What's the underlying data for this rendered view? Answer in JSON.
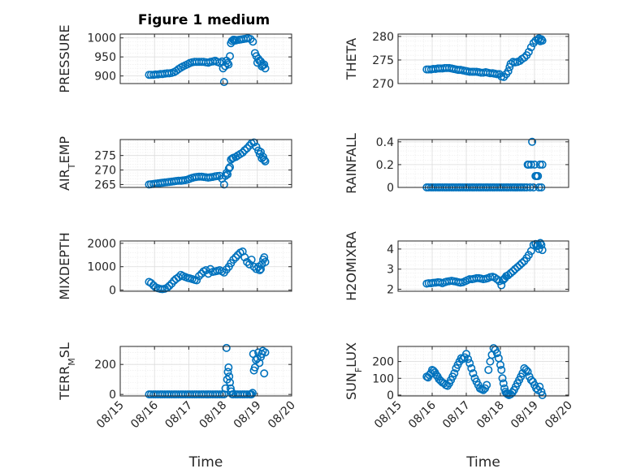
{
  "figure_title": "Figure 1 medium",
  "marker_color": "#0072bd",
  "chart_data": [
    {
      "type": "scatter",
      "ylabel": "PRESSURE",
      "xlabel": "",
      "xlim": [
        0,
        5
      ],
      "ylim": [
        880,
        1010
      ],
      "xticks": [
        0,
        1,
        2,
        3,
        4,
        5
      ],
      "xtick_labels": [
        "08/15",
        "08/16",
        "08/17",
        "08/18",
        "08/19",
        "08/20"
      ],
      "yticks": [
        900,
        950,
        1000
      ],
      "ytick_labels": [
        "900",
        "950",
        "1000"
      ],
      "grid": true,
      "minor_grid": true,
      "x": [
        0.84,
        0.9,
        0.97,
        1.03,
        1.1,
        1.17,
        1.23,
        1.3,
        1.37,
        1.43,
        1.5,
        1.57,
        1.63,
        1.7,
        1.77,
        1.83,
        1.9,
        1.97,
        2.03,
        2.1,
        2.17,
        2.23,
        2.3,
        2.37,
        2.43,
        2.5,
        2.57,
        2.63,
        2.7,
        2.77,
        2.83,
        2.9,
        2.97,
        3.0,
        3.03,
        3.06,
        3.1,
        3.13,
        3.16,
        3.2,
        3.23,
        3.26,
        3.3,
        3.33,
        3.36,
        3.4,
        3.47,
        3.53,
        3.6,
        3.67,
        3.73,
        3.8,
        3.87,
        3.93,
        3.97,
        4.0,
        4.03,
        4.06,
        4.1,
        4.13,
        4.16,
        4.2,
        4.23
      ],
      "y": [
        903,
        903,
        903,
        904,
        904,
        905,
        905,
        906,
        907,
        907,
        908,
        910,
        913,
        918,
        922,
        925,
        928,
        931,
        934,
        936,
        937,
        937,
        937,
        937,
        937,
        936,
        935,
        937,
        938,
        940,
        937,
        935,
        938,
        920,
        884,
        926,
        940,
        934,
        930,
        952,
        986,
        992,
        995,
        995,
        993,
        994,
        995,
        996,
        997,
        998,
        999,
        997,
        990,
        960,
        952,
        935,
        945,
        940,
        938,
        925,
        928,
        930,
        920
      ]
    },
    {
      "type": "scatter",
      "ylabel": "THETA",
      "xlabel": "",
      "xlim": [
        0,
        5
      ],
      "ylim": [
        270,
        280.5
      ],
      "xticks": [
        0,
        1,
        2,
        3,
        4,
        5
      ],
      "xtick_labels": [
        "08/15",
        "08/16",
        "08/17",
        "08/18",
        "08/19",
        "08/20"
      ],
      "yticks": [
        270,
        275,
        280
      ],
      "ytick_labels": [
        "270",
        "275",
        "280"
      ],
      "grid": true,
      "minor_grid": true,
      "x": [
        0.84,
        0.9,
        0.97,
        1.03,
        1.1,
        1.17,
        1.23,
        1.3,
        1.37,
        1.43,
        1.5,
        1.57,
        1.63,
        1.7,
        1.77,
        1.83,
        1.9,
        1.97,
        2.03,
        2.1,
        2.17,
        2.23,
        2.3,
        2.37,
        2.43,
        2.5,
        2.57,
        2.63,
        2.7,
        2.77,
        2.83,
        2.9,
        2.97,
        3.03,
        3.1,
        3.17,
        3.23,
        3.27,
        3.3,
        3.37,
        3.43,
        3.5,
        3.57,
        3.63,
        3.7,
        3.77,
        3.83,
        3.9,
        3.97,
        4.03,
        4.1,
        4.13,
        4.17,
        4.2,
        4.23
      ],
      "y": [
        273,
        273,
        273,
        273.1,
        273.1,
        273.2,
        273.2,
        273.2,
        273.3,
        273.3,
        273.3,
        273.2,
        273.1,
        273,
        272.9,
        272.9,
        272.8,
        272.7,
        272.6,
        272.5,
        272.5,
        272.5,
        272.5,
        272.4,
        272.3,
        272.3,
        272.4,
        272.3,
        272.2,
        272.2,
        272.1,
        272,
        272,
        271.5,
        271.4,
        272,
        272.6,
        273.5,
        274.2,
        274.6,
        274.5,
        274.6,
        274.8,
        275.2,
        275.5,
        276,
        276.7,
        277.7,
        278.6,
        279.1,
        279.3,
        279.6,
        279,
        279.4,
        279.1
      ]
    },
    {
      "type": "scatter",
      "ylabel": "AIR_TEMP",
      "xlabel": "",
      "xlim": [
        0,
        5
      ],
      "ylim": [
        264,
        280.5
      ],
      "xticks": [
        0,
        1,
        2,
        3,
        4,
        5
      ],
      "xtick_labels": [
        "08/15",
        "08/16",
        "08/17",
        "08/18",
        "08/19",
        "08/20"
      ],
      "yticks": [
        265,
        270,
        275
      ],
      "ytick_labels": [
        "265",
        "270",
        "275"
      ],
      "grid": true,
      "minor_grid": true,
      "x": [
        0.84,
        0.9,
        0.97,
        1.03,
        1.1,
        1.17,
        1.23,
        1.3,
        1.37,
        1.43,
        1.5,
        1.57,
        1.63,
        1.7,
        1.77,
        1.83,
        1.9,
        1.97,
        2.03,
        2.1,
        2.17,
        2.23,
        2.3,
        2.37,
        2.43,
        2.5,
        2.57,
        2.63,
        2.7,
        2.77,
        2.83,
        2.9,
        2.97,
        3.03,
        3.07,
        3.1,
        3.13,
        3.17,
        3.2,
        3.23,
        3.27,
        3.3,
        3.37,
        3.43,
        3.5,
        3.57,
        3.63,
        3.7,
        3.77,
        3.83,
        3.9,
        3.97,
        4.03,
        4.07,
        4.1,
        4.13,
        4.17,
        4.2,
        4.23
      ],
      "y": [
        265,
        265.1,
        265.2,
        265.3,
        265.4,
        265.5,
        265.6,
        265.7,
        265.8,
        265.9,
        266,
        266.1,
        266.2,
        266.3,
        266.3,
        266.4,
        266.5,
        266.7,
        267,
        267.3,
        267.5,
        267.6,
        267.7,
        267.7,
        267.6,
        267.5,
        267.4,
        267.5,
        267.6,
        267.8,
        267.9,
        268,
        267,
        265,
        268,
        269,
        268.5,
        270.5,
        271,
        273.6,
        274,
        274.2,
        274.5,
        275,
        275.5,
        276,
        276.8,
        277.5,
        278.4,
        279.2,
        279.5,
        278,
        276.7,
        275.5,
        276.2,
        274,
        274.5,
        273.5,
        273
      ]
    },
    {
      "type": "scatter",
      "ylabel": "RAINFALL",
      "xlabel": "",
      "xlim": [
        0,
        5
      ],
      "ylim": [
        0,
        0.42
      ],
      "xticks": [
        0,
        1,
        2,
        3,
        4,
        5
      ],
      "xtick_labels": [
        "08/15",
        "08/16",
        "08/17",
        "08/18",
        "08/19",
        "08/20"
      ],
      "yticks": [
        0,
        0.2,
        0.4
      ],
      "ytick_labels": [
        "0",
        "0.2",
        "0.4"
      ],
      "grid": true,
      "minor_grid": true,
      "x": [
        0.84,
        0.9,
        0.97,
        1.03,
        1.1,
        1.17,
        1.23,
        1.3,
        1.37,
        1.43,
        1.5,
        1.57,
        1.63,
        1.7,
        1.77,
        1.83,
        1.9,
        1.97,
        2.03,
        2.1,
        2.17,
        2.23,
        2.3,
        2.37,
        2.43,
        2.5,
        2.57,
        2.63,
        2.7,
        2.77,
        2.83,
        2.9,
        2.97,
        3.03,
        3.1,
        3.17,
        3.23,
        3.3,
        3.37,
        3.43,
        3.5,
        3.57,
        3.63,
        3.7,
        3.77,
        3.8,
        3.83,
        3.87,
        3.9,
        3.93,
        3.97,
        4.0,
        4.03,
        4.06,
        4.1,
        4.13,
        4.16,
        4.2,
        4.23
      ],
      "y": [
        0,
        0,
        0,
        0,
        0,
        0,
        0,
        0,
        0,
        0,
        0,
        0,
        0,
        0,
        0,
        0,
        0,
        0,
        0,
        0,
        0,
        0,
        0,
        0,
        0,
        0,
        0,
        0,
        0,
        0,
        0,
        0,
        0,
        0,
        0,
        0,
        0,
        0,
        0,
        0,
        0,
        0,
        0,
        0,
        0,
        0.2,
        0.2,
        0,
        0.2,
        0.4,
        0,
        0.2,
        0.1,
        0.1,
        0.1,
        0,
        0.2,
        0,
        0.2
      ]
    },
    {
      "type": "scatter",
      "ylabel": "MIXDEPTH",
      "xlabel": "",
      "xlim": [
        0,
        5
      ],
      "ylim": [
        -50,
        2100
      ],
      "xticks": [
        0,
        1,
        2,
        3,
        4,
        5
      ],
      "xtick_labels": [
        "08/15",
        "08/16",
        "08/17",
        "08/18",
        "08/19",
        "08/20"
      ],
      "yticks": [
        0,
        1000,
        2000
      ],
      "ytick_labels": [
        "0",
        "1000",
        "2000"
      ],
      "grid": true,
      "minor_grid": true,
      "x": [
        0.84,
        0.9,
        0.97,
        1.03,
        1.1,
        1.17,
        1.23,
        1.3,
        1.37,
        1.43,
        1.5,
        1.57,
        1.63,
        1.7,
        1.77,
        1.83,
        1.9,
        1.97,
        2.03,
        2.1,
        2.17,
        2.23,
        2.3,
        2.37,
        2.43,
        2.5,
        2.57,
        2.63,
        2.7,
        2.77,
        2.83,
        2.9,
        2.97,
        3.03,
        3.1,
        3.17,
        3.23,
        3.3,
        3.37,
        3.43,
        3.5,
        3.57,
        3.63,
        3.7,
        3.77,
        3.83,
        3.9,
        3.97,
        4.03,
        4.07,
        4.1,
        4.13,
        4.17,
        4.2,
        4.23
      ],
      "y": [
        350,
        300,
        200,
        120,
        80,
        50,
        40,
        60,
        100,
        180,
        280,
        400,
        480,
        550,
        650,
        600,
        560,
        520,
        500,
        470,
        440,
        420,
        600,
        700,
        800,
        850,
        700,
        900,
        780,
        800,
        820,
        850,
        800,
        750,
        880,
        1000,
        1150,
        1300,
        1400,
        1500,
        1600,
        1650,
        1400,
        1200,
        1100,
        1300,
        1000,
        900,
        1000,
        850,
        900,
        1100,
        1300,
        1400,
        1200
      ]
    },
    {
      "type": "scatter",
      "ylabel": "H2OMIXRA",
      "xlabel": "",
      "xlim": [
        0,
        5
      ],
      "ylim": [
        1.9,
        4.4
      ],
      "xticks": [
        0,
        1,
        2,
        3,
        4,
        5
      ],
      "xtick_labels": [
        "08/15",
        "08/16",
        "08/17",
        "08/18",
        "08/19",
        "08/20"
      ],
      "yticks": [
        2,
        3,
        4
      ],
      "ytick_labels": [
        "2",
        "3",
        "4"
      ],
      "grid": true,
      "minor_grid": true,
      "x": [
        0.84,
        0.9,
        0.97,
        1.03,
        1.1,
        1.17,
        1.23,
        1.3,
        1.37,
        1.43,
        1.5,
        1.57,
        1.63,
        1.7,
        1.77,
        1.83,
        1.9,
        1.97,
        2.03,
        2.1,
        2.17,
        2.23,
        2.3,
        2.37,
        2.43,
        2.5,
        2.57,
        2.63,
        2.7,
        2.77,
        2.83,
        2.9,
        2.97,
        3.03,
        3.07,
        3.1,
        3.13,
        3.17,
        3.23,
        3.3,
        3.37,
        3.43,
        3.5,
        3.57,
        3.63,
        3.7,
        3.77,
        3.83,
        3.9,
        3.97,
        4.03,
        4.07,
        4.1,
        4.13,
        4.17,
        4.2,
        4.23
      ],
      "y": [
        2.28,
        2.3,
        2.3,
        2.32,
        2.33,
        2.35,
        2.34,
        2.3,
        2.35,
        2.38,
        2.4,
        2.42,
        2.4,
        2.38,
        2.35,
        2.33,
        2.35,
        2.4,
        2.45,
        2.5,
        2.5,
        2.52,
        2.55,
        2.55,
        2.53,
        2.5,
        2.52,
        2.55,
        2.6,
        2.62,
        2.58,
        2.5,
        2.4,
        2.2,
        2.45,
        2.5,
        2.55,
        2.65,
        2.7,
        2.8,
        2.9,
        3.0,
        3.1,
        3.2,
        3.3,
        3.4,
        3.55,
        3.7,
        3.9,
        4.2,
        4.25,
        4.15,
        4.2,
        4.0,
        4.3,
        4.2,
        3.95
      ]
    },
    {
      "type": "scatter",
      "ylabel": "TERR_MSL",
      "xlabel": "Time",
      "xlim": [
        0,
        5
      ],
      "ylim": [
        -10,
        320
      ],
      "xticks": [
        0,
        1,
        2,
        3,
        4,
        5
      ],
      "xtick_labels": [
        "08/15",
        "08/16",
        "08/17",
        "08/18",
        "08/19",
        "08/20"
      ],
      "yticks": [
        0,
        200
      ],
      "ytick_labels": [
        "0",
        "200"
      ],
      "grid": true,
      "minor_grid": true,
      "x": [
        0.84,
        0.9,
        0.97,
        1.03,
        1.1,
        1.17,
        1.23,
        1.3,
        1.37,
        1.43,
        1.5,
        1.57,
        1.63,
        1.7,
        1.77,
        1.83,
        1.9,
        1.97,
        2.03,
        2.1,
        2.17,
        2.23,
        2.3,
        2.37,
        2.43,
        2.5,
        2.57,
        2.63,
        2.7,
        2.77,
        2.83,
        2.9,
        2.97,
        3.03,
        3.07,
        3.1,
        3.12,
        3.14,
        3.16,
        3.18,
        3.2,
        3.22,
        3.24,
        3.27,
        3.3,
        3.37,
        3.43,
        3.5,
        3.57,
        3.63,
        3.7,
        3.77,
        3.8,
        3.83,
        3.86,
        3.88,
        3.9,
        3.93,
        3.96,
        4.0,
        4.03,
        4.06,
        4.1,
        4.13,
        4.16,
        4.2,
        4.23
      ],
      "y": [
        0,
        0,
        0,
        0,
        0,
        0,
        0,
        0,
        0,
        0,
        0,
        0,
        0,
        0,
        0,
        0,
        0,
        0,
        0,
        0,
        0,
        0,
        0,
        0,
        0,
        0,
        0,
        0,
        0,
        0,
        0,
        0,
        0,
        0,
        40,
        310,
        100,
        150,
        180,
        120,
        80,
        40,
        20,
        0,
        0,
        0,
        0,
        0,
        0,
        0,
        0,
        0,
        0,
        0,
        10,
        270,
        160,
        180,
        230,
        240,
        280,
        210,
        250,
        270,
        290,
        140,
        280
      ]
    },
    {
      "type": "scatter",
      "ylabel": "SUN_FLUX",
      "xlabel": "Time",
      "xlim": [
        0,
        5
      ],
      "ylim": [
        -5,
        290
      ],
      "xticks": [
        0,
        1,
        2,
        3,
        4,
        5
      ],
      "xtick_labels": [
        "08/15",
        "08/16",
        "08/17",
        "08/18",
        "08/19",
        "08/20"
      ],
      "yticks": [
        0,
        100,
        200
      ],
      "ytick_labels": [
        "0",
        "100",
        "200"
      ],
      "grid": true,
      "minor_grid": true,
      "x": [
        0.84,
        0.88,
        0.92,
        0.96,
        1.0,
        1.04,
        1.08,
        1.12,
        1.16,
        1.2,
        1.25,
        1.3,
        1.35,
        1.4,
        1.45,
        1.5,
        1.55,
        1.6,
        1.65,
        1.7,
        1.75,
        1.8,
        1.85,
        1.9,
        1.95,
        2.0,
        2.05,
        2.1,
        2.15,
        2.2,
        2.25,
        2.3,
        2.35,
        2.4,
        2.45,
        2.5,
        2.55,
        2.6,
        2.65,
        2.7,
        2.75,
        2.8,
        2.85,
        2.9,
        2.95,
        3.0,
        3.03,
        3.06,
        3.09,
        3.12,
        3.15,
        3.18,
        3.21,
        3.25,
        3.3,
        3.35,
        3.4,
        3.45,
        3.5,
        3.55,
        3.6,
        3.65,
        3.7,
        3.75,
        3.8,
        3.85,
        3.9,
        3.95,
        4.0,
        4.05,
        4.1,
        4.15,
        4.2,
        4.23
      ],
      "y": [
        110,
        105,
        120,
        130,
        150,
        145,
        135,
        120,
        110,
        95,
        85,
        75,
        70,
        60,
        55,
        70,
        90,
        110,
        130,
        160,
        180,
        200,
        220,
        215,
        225,
        245,
        215,
        190,
        160,
        130,
        100,
        80,
        60,
        40,
        35,
        30,
        40,
        60,
        150,
        200,
        240,
        280,
        270,
        250,
        220,
        180,
        150,
        100,
        70,
        40,
        20,
        10,
        5,
        0,
        5,
        15,
        30,
        50,
        70,
        90,
        110,
        130,
        160,
        150,
        140,
        110,
        90,
        80,
        60,
        40,
        30,
        50,
        20,
        0
      ]
    }
  ]
}
